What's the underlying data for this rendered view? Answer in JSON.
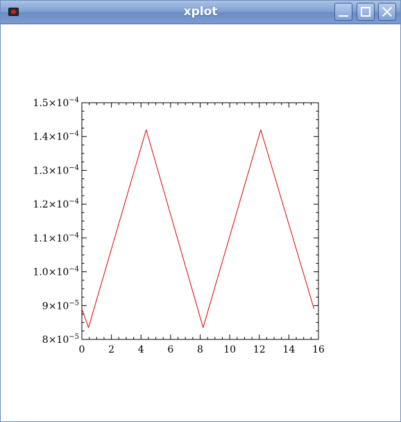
{
  "window": {
    "title": "xplot"
  },
  "chart_data": {
    "type": "line",
    "title": "",
    "xlabel": "",
    "ylabel": "",
    "xlim": [
      0,
      16
    ],
    "ylim": [
      8e-05,
      0.00015
    ],
    "x_ticks": [
      0,
      2,
      4,
      6,
      8,
      10,
      12,
      14,
      16
    ],
    "x_tick_labels": [
      "0",
      "2",
      "4",
      "6",
      "8",
      "10",
      "12",
      "14",
      "16"
    ],
    "y_ticks": [
      8e-05,
      9e-05,
      0.0001,
      0.00011,
      0.00012,
      0.00013,
      0.00014,
      0.00015
    ],
    "y_tick_labels": [
      {
        "mantissa": "8",
        "exponent": "−5"
      },
      {
        "mantissa": "9",
        "exponent": "−5"
      },
      {
        "mantissa": "1.0",
        "exponent": "−4"
      },
      {
        "mantissa": "1.1",
        "exponent": "−4"
      },
      {
        "mantissa": "1.2",
        "exponent": "−4"
      },
      {
        "mantissa": "1.3",
        "exponent": "−4"
      },
      {
        "mantissa": "1.4",
        "exponent": "−4"
      },
      {
        "mantissa": "1.5",
        "exponent": "−4"
      }
    ],
    "grid": false,
    "legend": "none",
    "series": [
      {
        "color": "#e00000",
        "x": [
          0.0,
          0.45,
          4.35,
          8.2,
          12.1,
          15.7
        ],
        "y": [
          8.9e-05,
          8.35e-05,
          0.000142,
          8.35e-05,
          0.000142,
          8.9e-05
        ]
      }
    ]
  },
  "colors": {
    "titlebar_start": "#a9c2e6",
    "titlebar_end": "#6b8cc6",
    "series": "#e00000",
    "axis": "#000000"
  },
  "icons": [
    "app-icon",
    "minimize-icon",
    "maximize-icon",
    "close-icon"
  ]
}
